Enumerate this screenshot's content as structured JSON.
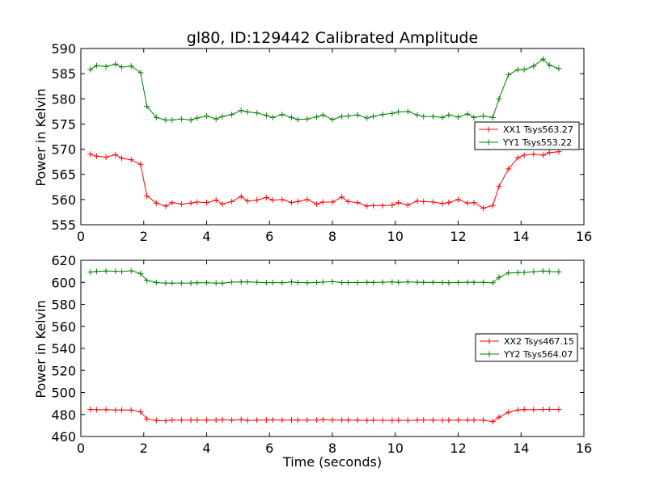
{
  "chart_data": [
    {
      "type": "line",
      "title": "gl80, ID:129442 Calibrated Amplitude",
      "xlabel": "",
      "ylabel": "Power in Kelvin",
      "xlim": [
        0,
        16
      ],
      "ylim": [
        555,
        590
      ],
      "xticks": [
        "0",
        "2",
        "4",
        "6",
        "8",
        "10",
        "12",
        "14",
        "16"
      ],
      "yticks": [
        "555",
        "560",
        "565",
        "570",
        "575",
        "580",
        "585",
        "590"
      ],
      "grid": false,
      "legend_position": "right",
      "marker": "plus",
      "x": [
        0.3,
        0.5,
        0.8,
        1.1,
        1.3,
        1.6,
        1.9,
        2.1,
        2.4,
        2.7,
        2.9,
        3.2,
        3.5,
        3.7,
        4.0,
        4.3,
        4.5,
        4.8,
        5.1,
        5.3,
        5.6,
        5.9,
        6.1,
        6.4,
        6.7,
        6.9,
        7.2,
        7.5,
        7.7,
        8.0,
        8.3,
        8.5,
        8.8,
        9.1,
        9.3,
        9.6,
        9.9,
        10.1,
        10.4,
        10.7,
        10.9,
        11.2,
        11.5,
        11.7,
        12.0,
        12.3,
        12.5,
        12.8,
        13.1,
        13.3,
        13.6,
        13.9,
        14.1,
        14.4,
        14.7,
        14.9,
        15.2
      ],
      "series": [
        {
          "name": "XX1 Tsys563.27",
          "color": "#ff0000",
          "values": [
            569.0,
            568.6,
            568.4,
            568.9,
            568.2,
            567.9,
            567.0,
            560.7,
            559.3,
            558.7,
            559.4,
            559.1,
            559.3,
            559.5,
            559.4,
            559.9,
            559.1,
            559.6,
            560.6,
            559.7,
            559.9,
            560.4,
            559.9,
            560.0,
            559.4,
            559.6,
            560.0,
            559.1,
            559.5,
            559.5,
            560.5,
            559.6,
            559.4,
            558.7,
            558.8,
            558.8,
            558.9,
            559.4,
            558.9,
            559.7,
            559.6,
            559.5,
            559.2,
            559.4,
            560.0,
            559.3,
            559.4,
            558.3,
            558.8,
            562.6,
            566.1,
            568.3,
            568.8,
            569.0,
            568.8,
            569.3,
            569.5
          ]
        },
        {
          "name": "YY1 Tsys553.22",
          "color": "#008000",
          "values": [
            585.8,
            586.6,
            586.4,
            586.9,
            586.3,
            586.5,
            585.2,
            578.5,
            576.3,
            575.8,
            575.8,
            576.0,
            575.8,
            576.2,
            576.6,
            576.0,
            576.5,
            576.9,
            577.7,
            577.4,
            577.2,
            576.7,
            576.3,
            576.9,
            576.3,
            575.9,
            576.0,
            576.4,
            576.8,
            575.9,
            576.5,
            576.6,
            576.8,
            576.2,
            576.5,
            576.9,
            577.1,
            577.4,
            577.5,
            576.8,
            576.5,
            576.5,
            576.3,
            576.8,
            576.4,
            577.0,
            576.3,
            576.6,
            576.3,
            580.0,
            584.8,
            585.8,
            585.8,
            586.5,
            587.9,
            586.7,
            586.0
          ]
        }
      ]
    },
    {
      "type": "line",
      "title": "",
      "xlabel": "Time (seconds)",
      "ylabel": "Power in Kelvin",
      "xlim": [
        0,
        16
      ],
      "ylim": [
        460,
        620
      ],
      "xticks": [
        "0",
        "2",
        "4",
        "6",
        "8",
        "10",
        "12",
        "14",
        "16"
      ],
      "yticks": [
        "460",
        "480",
        "500",
        "520",
        "540",
        "560",
        "580",
        "600",
        "620"
      ],
      "grid": false,
      "legend_position": "right",
      "marker": "plus",
      "x": [
        0.3,
        0.5,
        0.8,
        1.1,
        1.3,
        1.6,
        1.9,
        2.1,
        2.4,
        2.7,
        2.9,
        3.2,
        3.5,
        3.7,
        4.0,
        4.3,
        4.5,
        4.8,
        5.1,
        5.3,
        5.6,
        5.9,
        6.1,
        6.4,
        6.7,
        6.9,
        7.2,
        7.5,
        7.7,
        8.0,
        8.3,
        8.5,
        8.8,
        9.1,
        9.3,
        9.6,
        9.9,
        10.1,
        10.4,
        10.7,
        10.9,
        11.2,
        11.5,
        11.7,
        12.0,
        12.3,
        12.5,
        12.8,
        13.1,
        13.3,
        13.6,
        13.9,
        14.1,
        14.4,
        14.7,
        14.9,
        15.2
      ],
      "series": [
        {
          "name": "XX2 Tsys467.15",
          "color": "#ff0000",
          "values": [
            484.5,
            484.3,
            484.4,
            484.0,
            484.1,
            484.0,
            482.5,
            476.0,
            474.6,
            474.2,
            475.0,
            474.9,
            474.9,
            475.0,
            474.9,
            474.9,
            475.2,
            474.8,
            475.4,
            474.6,
            474.9,
            475.0,
            475.1,
            474.9,
            475.0,
            474.9,
            474.9,
            475.0,
            475.3,
            475.0,
            475.0,
            474.9,
            474.9,
            474.6,
            474.8,
            474.7,
            474.6,
            474.8,
            474.6,
            474.9,
            475.0,
            474.9,
            474.7,
            474.8,
            474.9,
            474.9,
            474.9,
            474.9,
            473.5,
            477.5,
            482.0,
            484.0,
            484.5,
            484.3,
            484.6,
            484.6,
            484.5
          ]
        },
        {
          "name": "YY2 Tsys564.07",
          "color": "#008000",
          "values": [
            609.3,
            609.9,
            610.3,
            610.1,
            609.7,
            610.5,
            608.0,
            601.6,
            599.8,
            599.3,
            599.3,
            599.4,
            599.3,
            599.6,
            599.7,
            599.3,
            599.2,
            600.2,
            600.4,
            600.4,
            600.1,
            599.7,
            599.8,
            599.7,
            600.4,
            599.8,
            599.6,
            599.9,
            600.2,
            600.6,
            599.8,
            599.8,
            599.8,
            600.0,
            599.9,
            600.1,
            600.3,
            600.0,
            600.4,
            600.1,
            599.9,
            600.0,
            599.8,
            599.6,
            599.9,
            600.1,
            600.0,
            600.0,
            599.5,
            604.5,
            608.5,
            608.8,
            609.0,
            609.5,
            610.3,
            609.8,
            609.5
          ]
        }
      ]
    }
  ]
}
